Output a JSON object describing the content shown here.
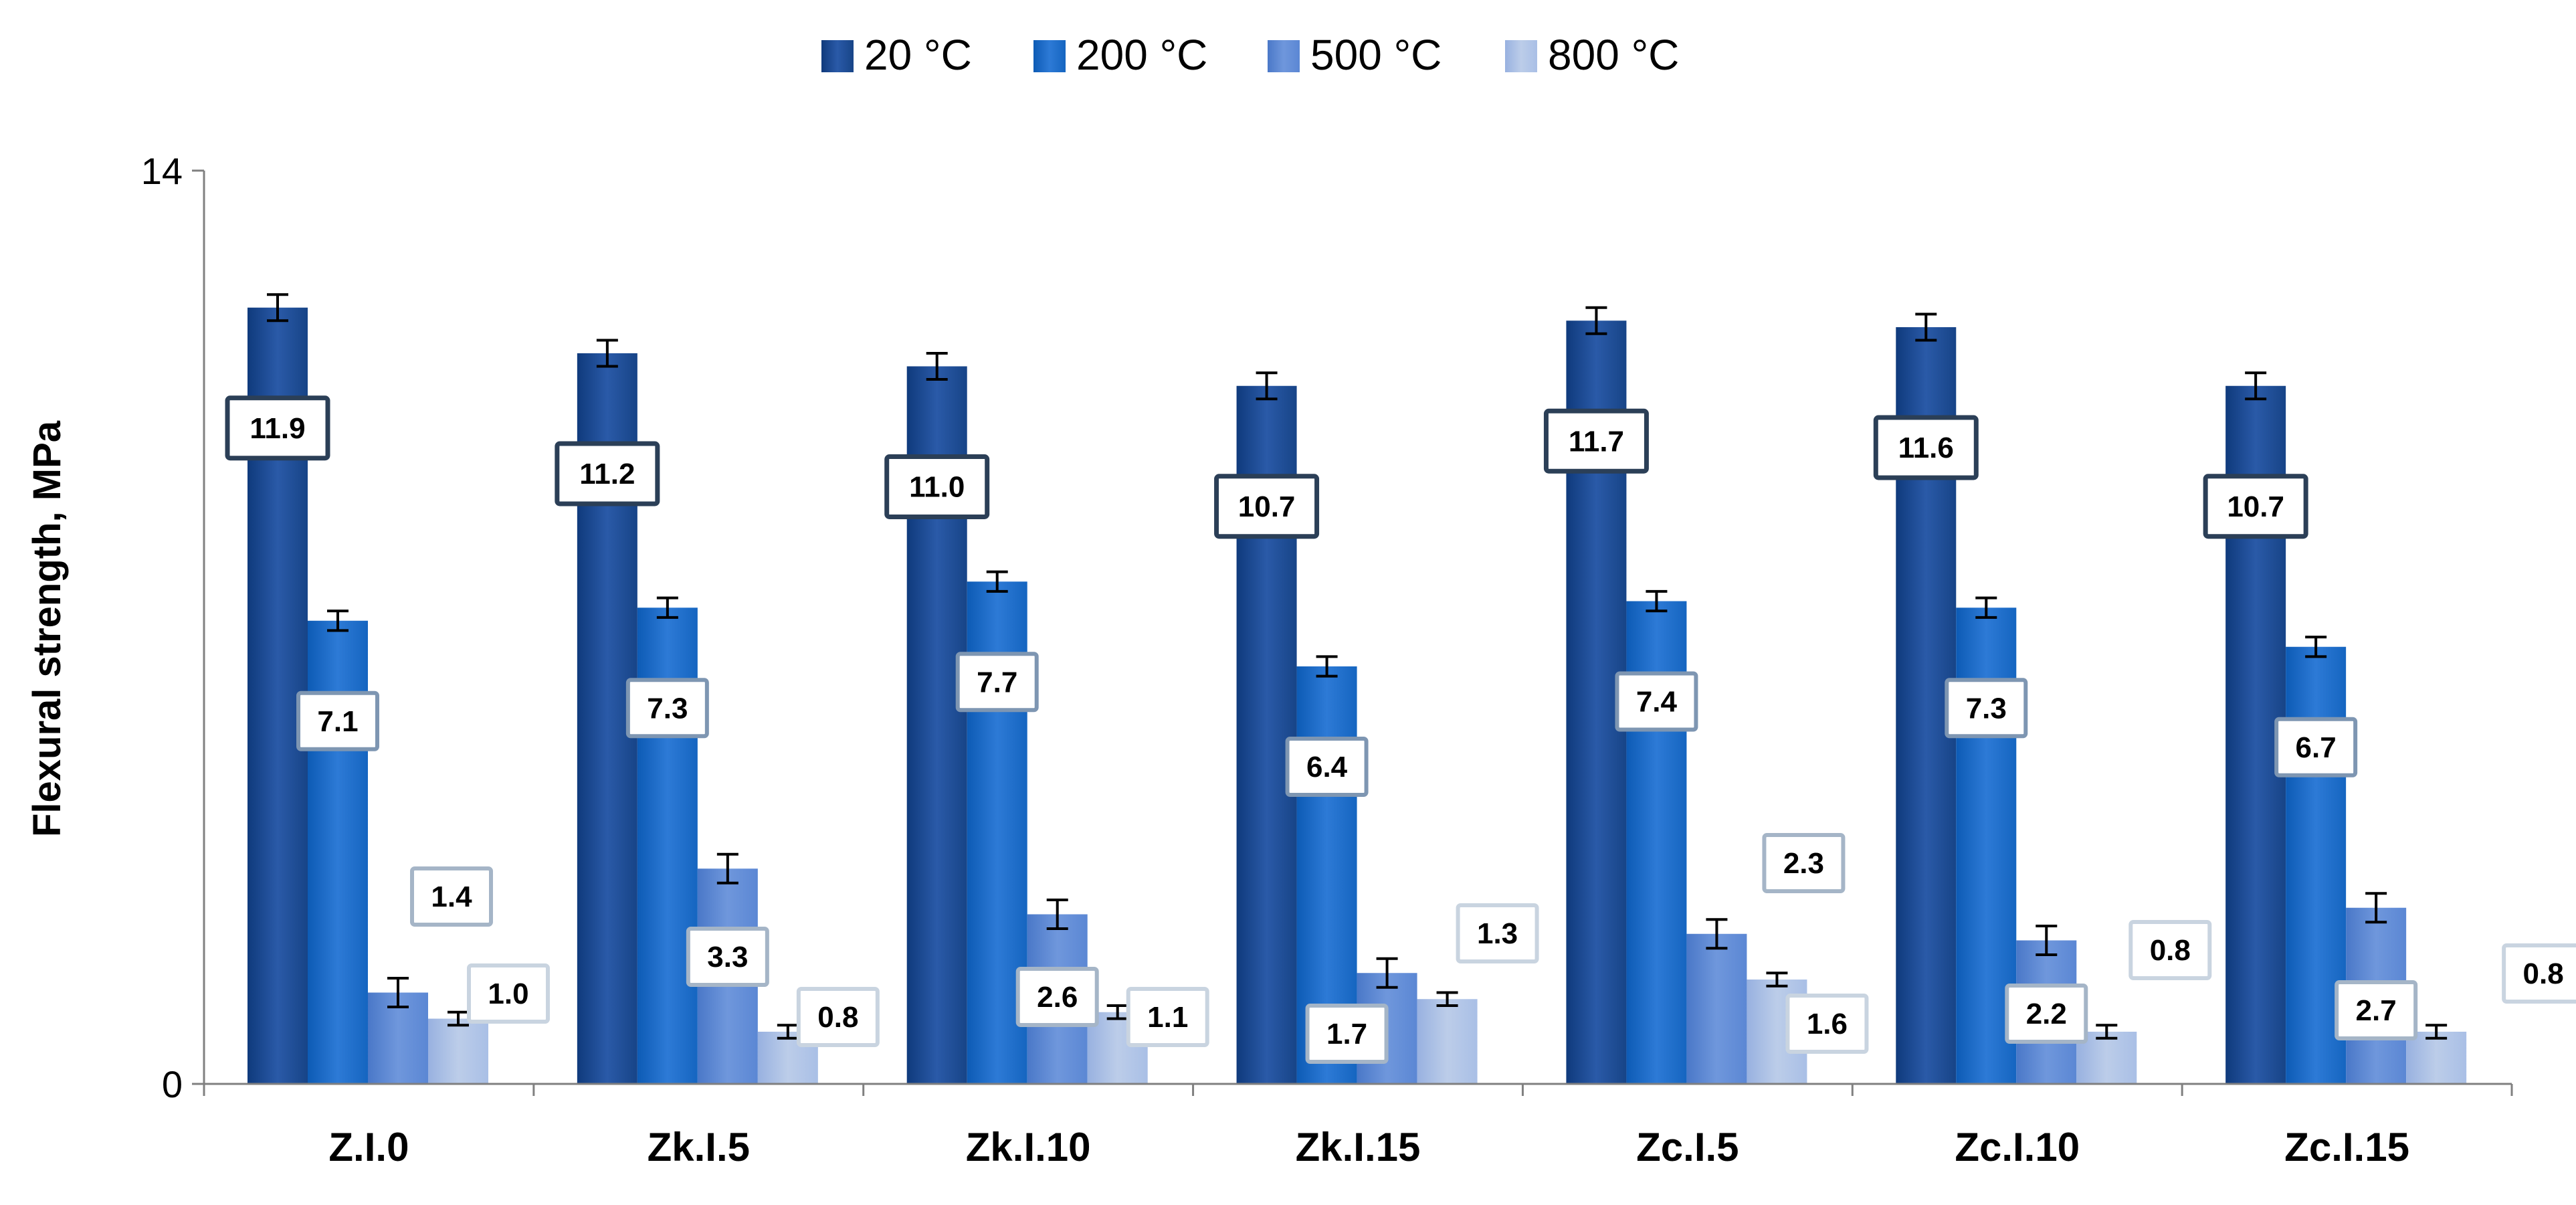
{
  "chart_data": {
    "type": "bar",
    "title": "",
    "xlabel": "",
    "ylabel": "Flexural strength, MPa",
    "ylim": [
      0,
      14
    ],
    "yticks": [
      "0",
      "14"
    ],
    "legend_position": "top-center",
    "categories": [
      "Z.I.0",
      "Zk.I.5",
      "Zk.I.10",
      "Zk.I.15",
      "Zc.I.5",
      "Zc.I.10",
      "Zc.I.15"
    ],
    "series": [
      {
        "name": "20 °C",
        "color": "#1f4e9a",
        "values": [
          11.9,
          11.2,
          11.0,
          10.7,
          11.7,
          11.6,
          10.7
        ],
        "labels": [
          "11.9",
          "11.2",
          "11.0",
          "10.7",
          "11.7",
          "11.6",
          "10.7"
        ],
        "errors": [
          0.2,
          0.2,
          0.2,
          0.2,
          0.2,
          0.2,
          0.2
        ]
      },
      {
        "name": "200 °C",
        "color": "#1565c0",
        "values": [
          7.1,
          7.3,
          7.7,
          6.4,
          7.4,
          7.3,
          6.7
        ],
        "labels": [
          "7.1",
          "7.3",
          "7.7",
          "6.4",
          "7.4",
          "7.3",
          "6.7"
        ],
        "errors": [
          0.15,
          0.15,
          0.15,
          0.15,
          0.15,
          0.15,
          0.15
        ]
      },
      {
        "name": "500 °C",
        "color": "#5b87d4",
        "values": [
          1.4,
          3.3,
          2.6,
          1.7,
          2.3,
          2.2,
          2.7
        ],
        "labels": [
          "1.4",
          "3.3",
          "2.6",
          "1.7",
          "2.3",
          "2.2",
          "2.7"
        ],
        "errors": [
          0.22,
          0.22,
          0.22,
          0.22,
          0.22,
          0.22,
          0.22
        ]
      },
      {
        "name": "800 °C",
        "color": "#a9bfe6",
        "values": [
          1.0,
          0.8,
          1.1,
          1.3,
          1.6,
          0.8,
          0.8
        ],
        "labels": [
          "1.0",
          "0.8",
          "1.1",
          "1.3",
          "1.6",
          "0.8",
          "0.8"
        ],
        "errors": [
          0.1,
          0.1,
          0.1,
          0.1,
          0.1,
          0.1,
          0.1
        ]
      }
    ]
  }
}
